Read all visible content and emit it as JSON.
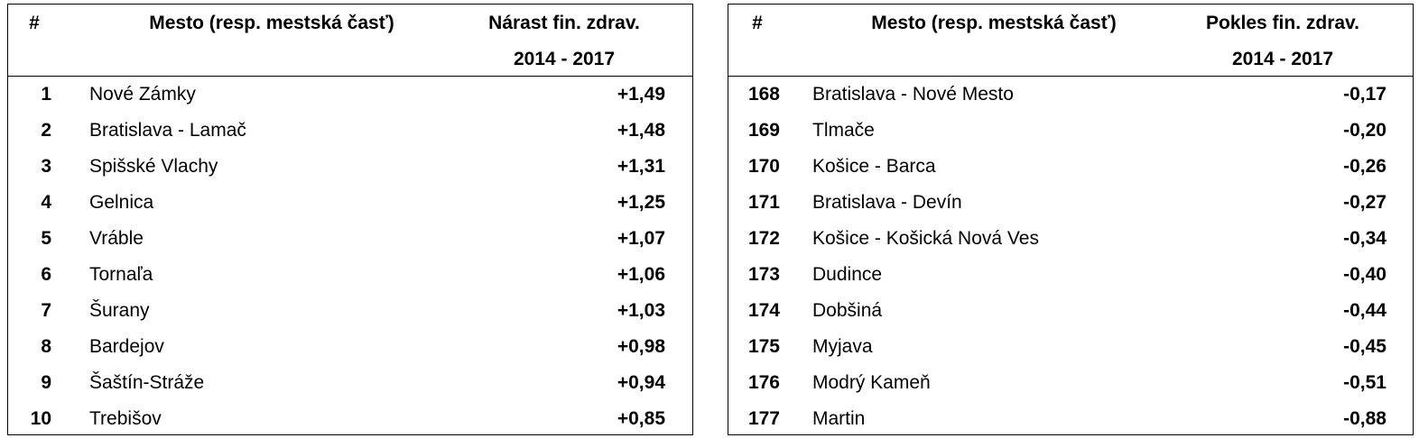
{
  "tables": [
    {
      "header": {
        "rank": "#",
        "city": "Mesto (resp. mestská časť)",
        "metric": [
          "Nárast fin. zdrav.",
          "2014 - 2017"
        ]
      },
      "rows": [
        [
          1,
          "Nové Zámky",
          "+1,49"
        ],
        [
          2,
          "Bratislava - Lamač",
          "+1,48"
        ],
        [
          3,
          "Spišské Vlachy",
          "+1,31"
        ],
        [
          4,
          "Gelnica",
          "+1,25"
        ],
        [
          5,
          "Vráble",
          "+1,07"
        ],
        [
          6,
          "Tornaľa",
          "+1,06"
        ],
        [
          7,
          "Šurany",
          "+1,03"
        ],
        [
          8,
          "Bardejov",
          "+0,98"
        ],
        [
          9,
          "Šaštín-Stráže",
          "+0,94"
        ],
        [
          10,
          "Trebišov",
          "+0,85"
        ]
      ]
    },
    {
      "header": {
        "rank": "#",
        "city": "Mesto (resp. mestská časť)",
        "metric": [
          "Pokles fin. zdrav.",
          "2014 - 2017"
        ]
      },
      "rows": [
        [
          168,
          "Bratislava - Nové Mesto",
          "-0,17"
        ],
        [
          169,
          "Tlmače",
          "-0,20"
        ],
        [
          170,
          "Košice - Barca",
          "-0,26"
        ],
        [
          171,
          "Bratislava - Devín",
          "-0,27"
        ],
        [
          172,
          "Košice - Košická Nová Ves",
          "-0,34"
        ],
        [
          173,
          "Dudince",
          "-0,40"
        ],
        [
          174,
          "Dobšiná",
          "-0,44"
        ],
        [
          175,
          "Myjava",
          "-0,45"
        ],
        [
          176,
          "Modrý Kameň",
          "-0,51"
        ],
        [
          177,
          "Martin",
          "-0,88"
        ]
      ]
    }
  ]
}
